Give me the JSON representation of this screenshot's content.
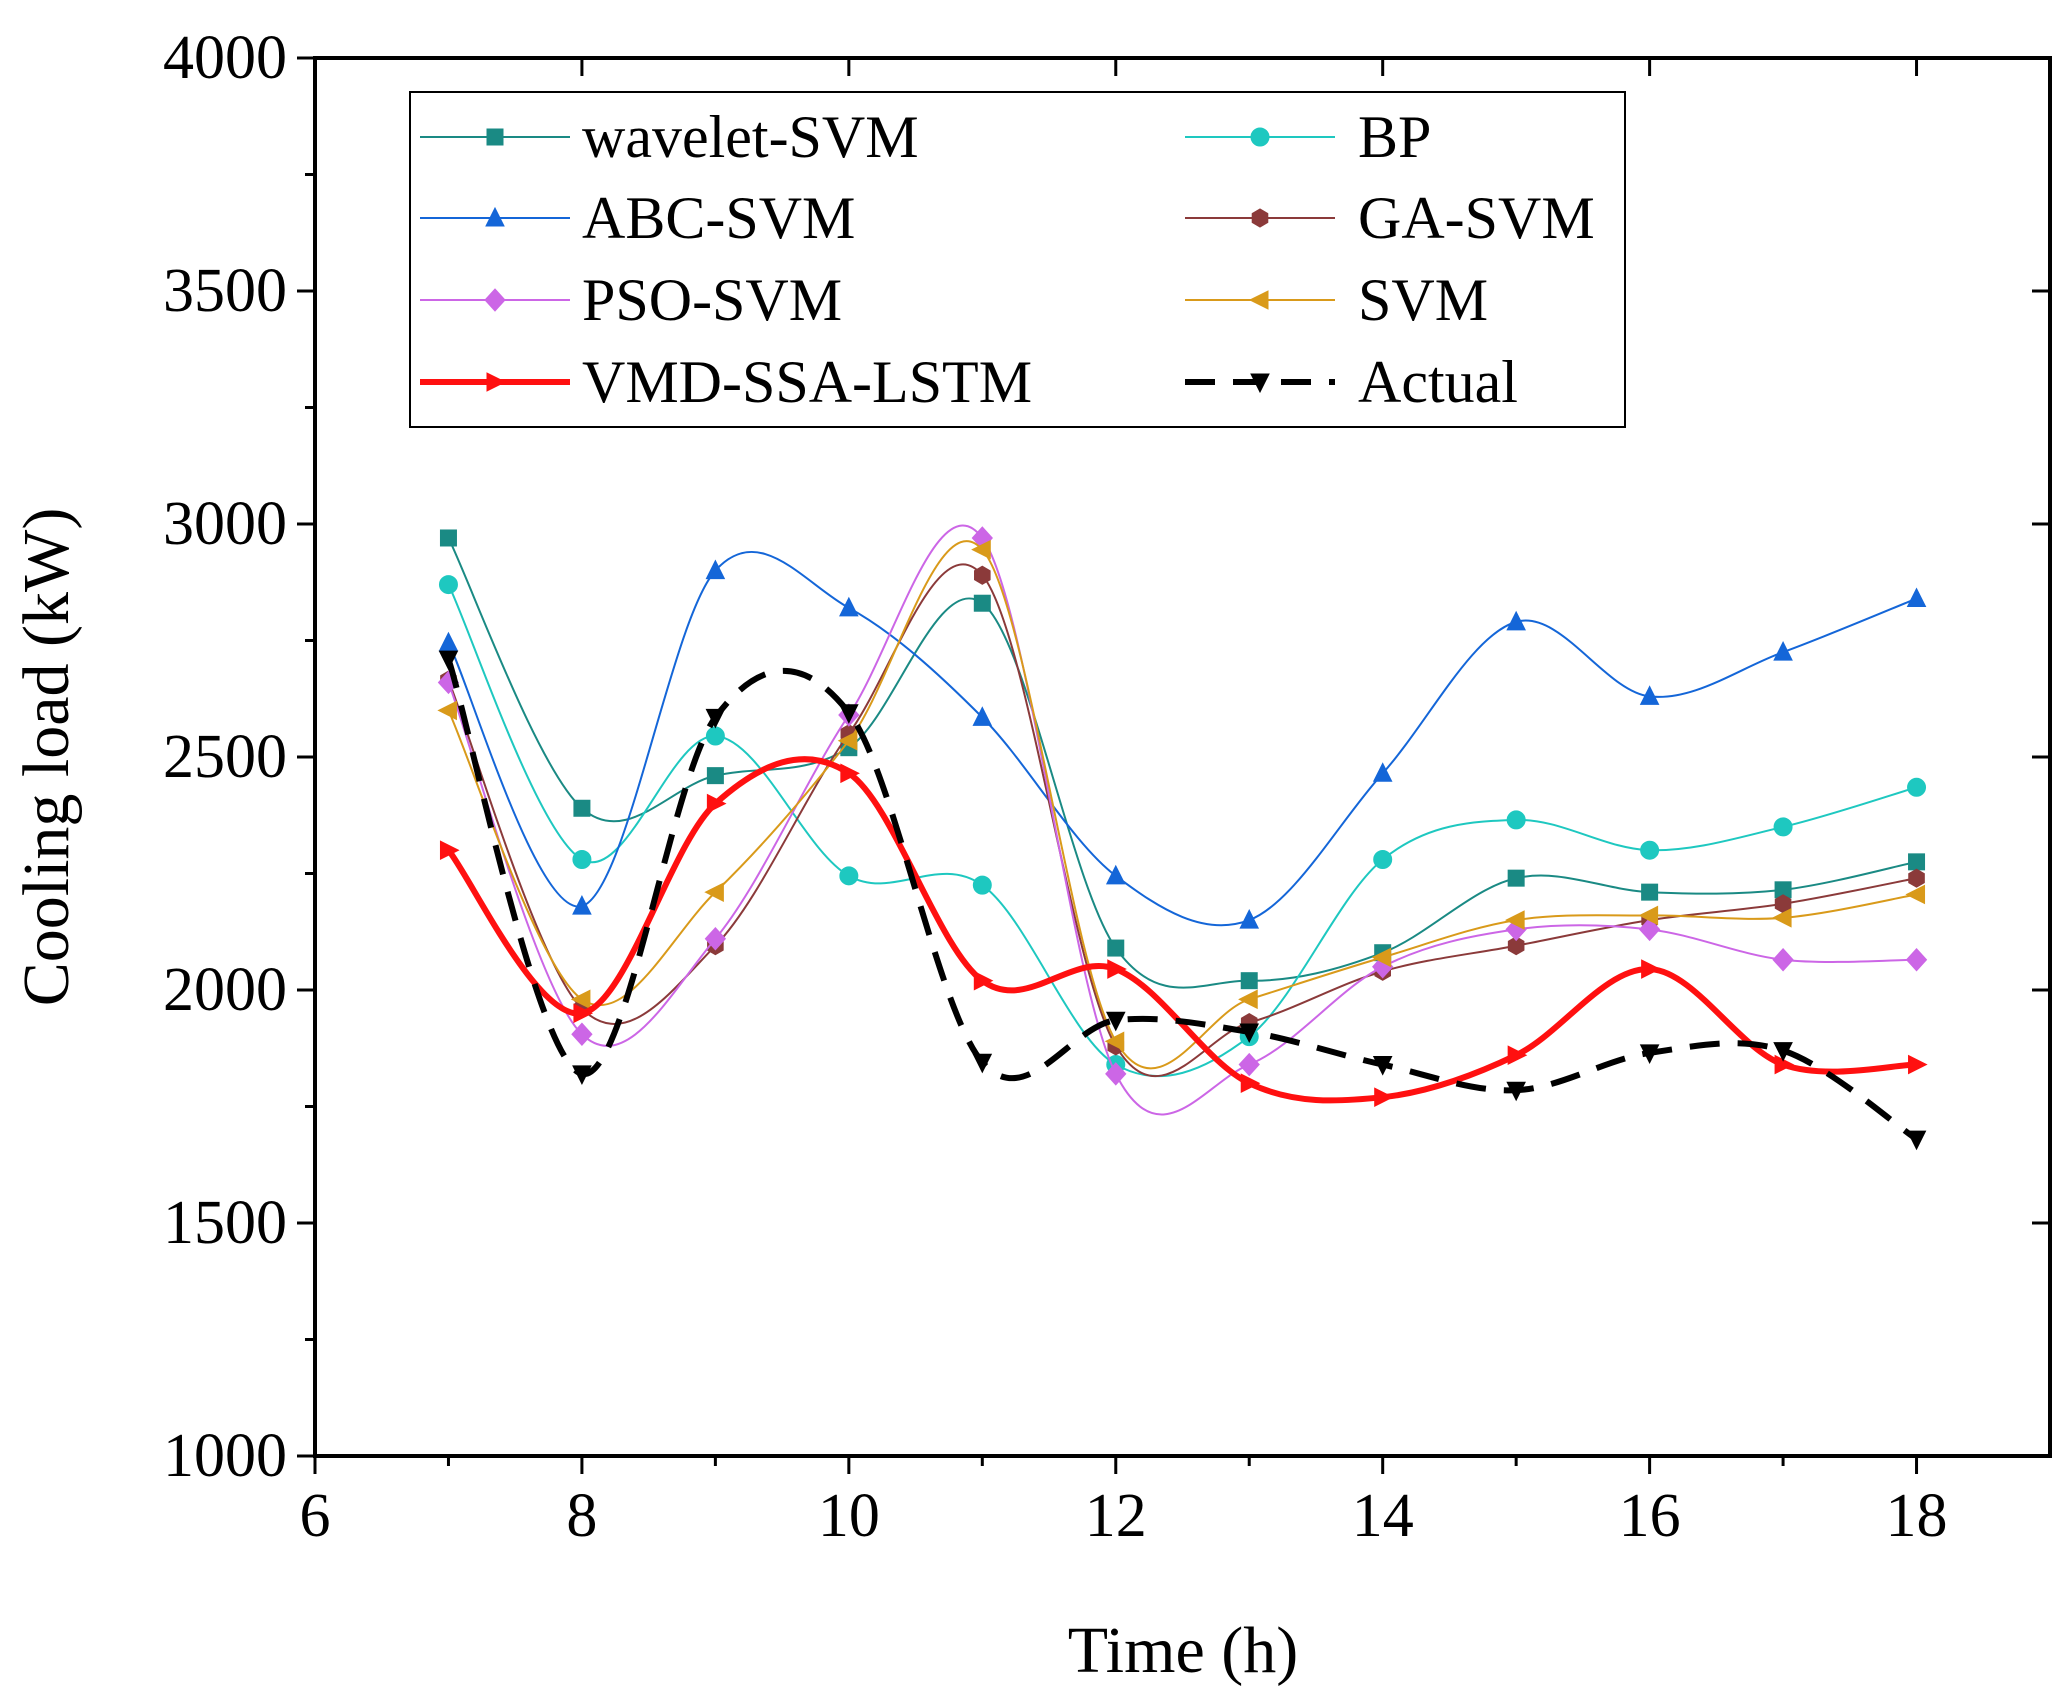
{
  "chart_data": {
    "type": "line",
    "title": "",
    "xlabel": "Time (h)",
    "ylabel": "Cooling load (kW)",
    "xlim": [
      6,
      19
    ],
    "ylim": [
      1000,
      4000
    ],
    "xticks": [
      6,
      8,
      10,
      12,
      14,
      16,
      18
    ],
    "yticks": [
      1000,
      1500,
      2000,
      2500,
      3000,
      3500,
      4000
    ],
    "x": [
      7,
      8,
      9,
      10,
      11,
      12,
      13,
      14,
      15,
      16,
      17,
      18
    ],
    "series": [
      {
        "name": "wavelet-SVM",
        "color": "#1a8a84",
        "marker": "square",
        "values": [
          2970,
          2390,
          2460,
          2520,
          2830,
          2090,
          2020,
          2080,
          2240,
          2210,
          2215,
          2275
        ]
      },
      {
        "name": "BP",
        "color": "#1ec8c0",
        "marker": "circle",
        "values": [
          2870,
          2280,
          2545,
          2245,
          2225,
          1840,
          1900,
          2280,
          2365,
          2300,
          2350,
          2435
        ]
      },
      {
        "name": "ABC-SVM",
        "color": "#1466d8",
        "marker": "triangle-up",
        "values": [
          2745,
          2180,
          2900,
          2820,
          2585,
          2245,
          2150,
          2465,
          2790,
          2630,
          2725,
          2840
        ]
      },
      {
        "name": "GA-SVM",
        "color": "#8b3a3a",
        "marker": "hexagon",
        "values": [
          2665,
          1960,
          2095,
          2550,
          2890,
          1880,
          1930,
          2040,
          2095,
          2150,
          2185,
          2240
        ]
      },
      {
        "name": "PSO-SVM",
        "color": "#cc66e6",
        "marker": "diamond",
        "values": [
          2660,
          1905,
          2110,
          2590,
          2970,
          1820,
          1840,
          2050,
          2130,
          2130,
          2065,
          2065
        ]
      },
      {
        "name": "SVM",
        "color": "#d99a1a",
        "marker": "triangle-left",
        "values": [
          2600,
          1980,
          2210,
          2535,
          2945,
          1890,
          1980,
          2070,
          2150,
          2160,
          2155,
          2205
        ]
      },
      {
        "name": "VMD-SSA-LSTM",
        "color": "#ff1010",
        "marker": "triangle-right",
        "values": [
          2300,
          1950,
          2400,
          2465,
          2020,
          2045,
          1800,
          1770,
          1860,
          2045,
          1840,
          1840
        ]
      },
      {
        "name": "Actual",
        "color": "#000000",
        "marker": "triangle-down",
        "dashed": true,
        "values": [
          2710,
          1820,
          2585,
          2595,
          1845,
          1935,
          1910,
          1840,
          1785,
          1865,
          1870,
          1680
        ]
      }
    ],
    "legend_position": "top"
  }
}
